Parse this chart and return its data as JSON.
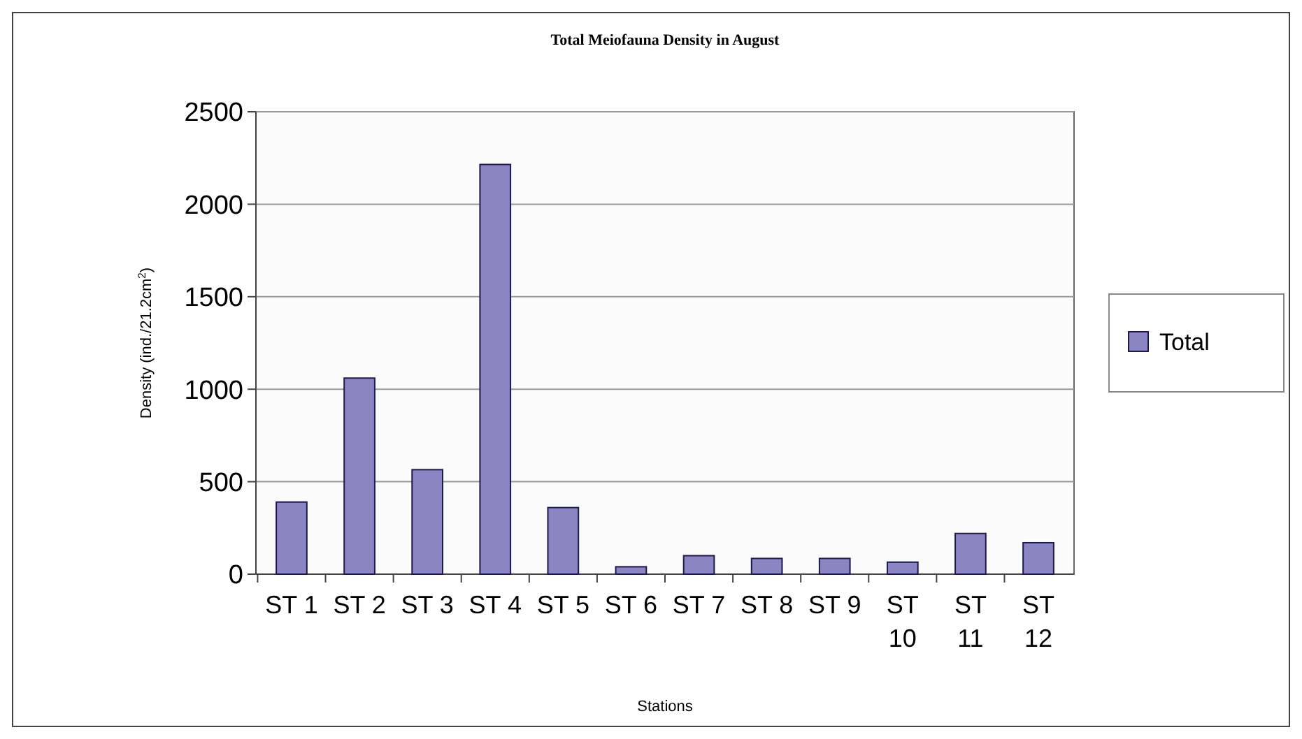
{
  "chart_data": {
    "type": "bar",
    "title": "Total Meiofauna Density in August",
    "xlabel": "Stations",
    "ylabel": "Density (ind./21.2cm$^{2}$)",
    "categories": [
      "ST 1",
      "ST 2",
      "ST 3",
      "ST 4",
      "ST 5",
      "ST 6",
      "ST 7",
      "ST 8",
      "ST 9",
      "ST 10",
      "ST 11",
      "ST 12"
    ],
    "series": [
      {
        "name": "Total",
        "color": "#8b85c4",
        "values": [
          390,
          1060,
          565,
          2215,
          360,
          40,
          100,
          85,
          85,
          65,
          220,
          170
        ]
      }
    ],
    "ylim": [
      0,
      2500
    ],
    "yticks": [
      0,
      500,
      1000,
      1500,
      2000,
      2500
    ],
    "grid": "y",
    "legend": "right"
  }
}
